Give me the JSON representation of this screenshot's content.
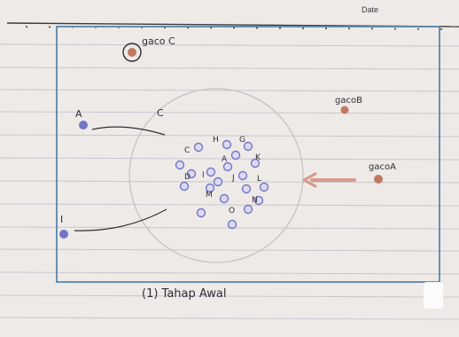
{
  "header": {
    "date_label": "Date"
  },
  "caption": "(1) Tahap Awal",
  "colors": {
    "paper": "#eeeae7",
    "rule_line": "#c9c7cf",
    "frame": "#5a86a8",
    "purple_dot": "#7474c8",
    "brown_dot": "#c07a62",
    "arrow": "#d89a8a",
    "ink": "#2d2d34"
  },
  "external_labels": {
    "top_ball": "gaco C",
    "gaco_b": "gacoB",
    "gaco_a": "gacoA",
    "left_a": "A",
    "curve_c": "C",
    "left_i": "I"
  },
  "cluster_labels": [
    "C",
    "H",
    "G",
    "A",
    "K",
    "D",
    "I",
    "J",
    "L",
    "M",
    "O",
    "N"
  ],
  "ball_count": {
    "cluster_purple": 20
  }
}
